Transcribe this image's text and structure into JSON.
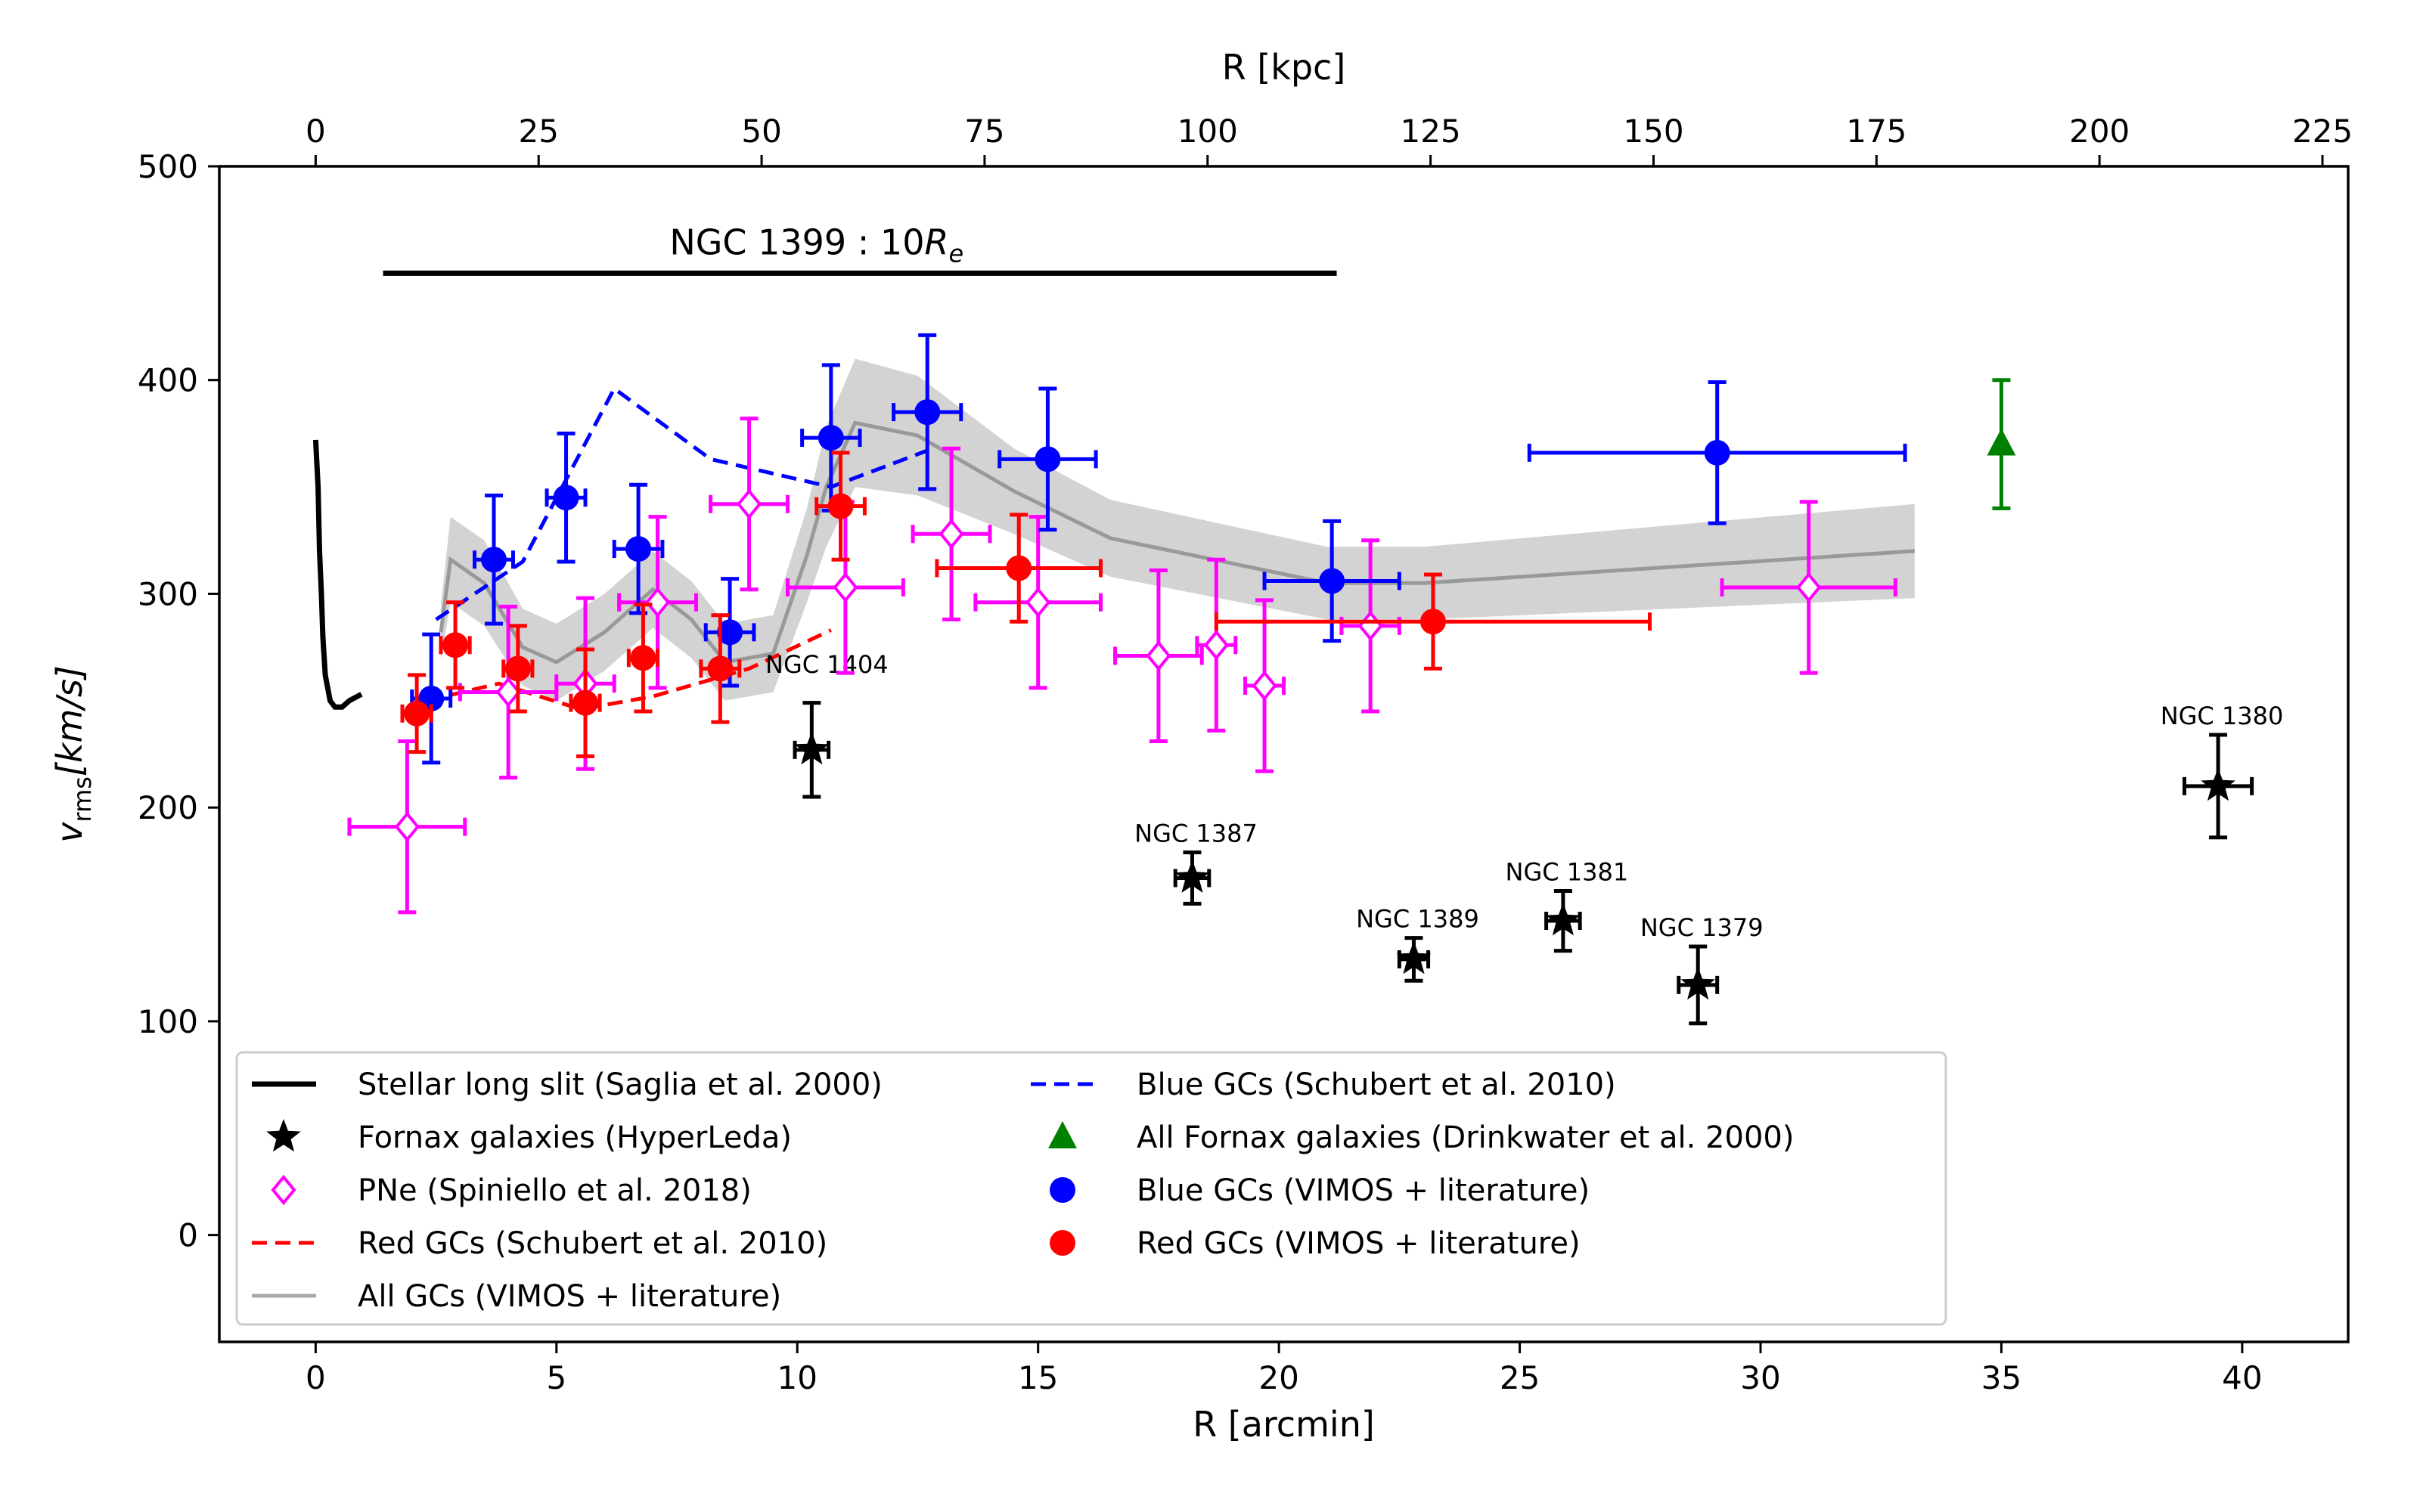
{
  "chart_data": {
    "type": "scatter",
    "xlabel": "R [arcmin]",
    "ylabel": "v_rms[km/s]",
    "top_xlabel": "R [kpc]",
    "xlim": [
      -2,
      42.2
    ],
    "ylim": [
      -50,
      500
    ],
    "top_xlim_kpc": [
      0,
      225
    ],
    "x_ticks": [
      0,
      5,
      10,
      15,
      20,
      25,
      30,
      35,
      40
    ],
    "y_ticks": [
      0,
      100,
      200,
      300,
      400,
      500
    ],
    "top_ticks": [
      0,
      25,
      50,
      75,
      100,
      125,
      150,
      175,
      200,
      225
    ],
    "annotation": {
      "text": "NGC 1399 : 10",
      "sub": "R",
      "subscript": "e",
      "x_range": [
        1.4,
        21.2
      ],
      "y": 450
    },
    "series": [
      {
        "name": "Stellar long slit (Saglia et al. 2000)",
        "kind": "line",
        "color": "#000000",
        "points": [
          [
            0.0,
            372
          ],
          [
            0.05,
            350
          ],
          [
            0.08,
            320
          ],
          [
            0.12,
            300
          ],
          [
            0.15,
            280
          ],
          [
            0.2,
            262
          ],
          [
            0.3,
            250
          ],
          [
            0.4,
            247
          ],
          [
            0.55,
            247
          ],
          [
            0.7,
            250
          ],
          [
            0.95,
            253
          ]
        ]
      },
      {
        "name": "Fornax galaxies (HyperLeda)",
        "kind": "star",
        "color": "#000000",
        "points": [
          {
            "x": 10.3,
            "y": 227,
            "xerr": 0.35,
            "yerr": 22,
            "label": "NGC 1404"
          },
          {
            "x": 18.2,
            "y": 167,
            "xerr": 0.35,
            "yerr": 12,
            "label": "NGC 1387"
          },
          {
            "x": 22.8,
            "y": 129,
            "xerr": 0.3,
            "yerr": 10,
            "label": "NGC 1389"
          },
          {
            "x": 25.9,
            "y": 147,
            "xerr": 0.35,
            "yerr": 14,
            "label": "NGC 1381"
          },
          {
            "x": 28.7,
            "y": 117,
            "xerr": 0.4,
            "yerr": 18,
            "label": "NGC 1379"
          },
          {
            "x": 39.5,
            "y": 210,
            "xerr": 0.7,
            "yerr": 24,
            "label": "NGC 1380"
          }
        ]
      },
      {
        "name": "PNe (Spiniello et al. 2018)",
        "kind": "diamond",
        "color": "#ff00ff",
        "points": [
          {
            "x": 1.9,
            "y": 191,
            "xerr": 1.2,
            "yerr": 40
          },
          {
            "x": 4.0,
            "y": 254,
            "xerr": 1.0,
            "yerr": 40
          },
          {
            "x": 5.6,
            "y": 258,
            "xerr": 0.6,
            "yerr": 40
          },
          {
            "x": 7.1,
            "y": 296,
            "xerr": 0.8,
            "yerr": 40
          },
          {
            "x": 9.0,
            "y": 342,
            "xerr": 0.8,
            "yerr": 40
          },
          {
            "x": 11.0,
            "y": 303,
            "xerr": 1.2,
            "yerr": 40
          },
          {
            "x": 13.2,
            "y": 328,
            "xerr": 0.8,
            "yerr": 40
          },
          {
            "x": 15.0,
            "y": 296,
            "xerr": 1.3,
            "yerr": 40
          },
          {
            "x": 17.5,
            "y": 271,
            "xerr": 0.9,
            "yerr": 40
          },
          {
            "x": 18.7,
            "y": 276,
            "xerr": 0.4,
            "yerr": 40
          },
          {
            "x": 19.7,
            "y": 257,
            "xerr": 0.4,
            "yerr": 40
          },
          {
            "x": 21.9,
            "y": 285,
            "xerr": 0.6,
            "yerr": 40
          },
          {
            "x": 31.0,
            "y": 303,
            "xerr": 1.8,
            "yerr": 40
          }
        ]
      },
      {
        "name": "Red GCs (Schubert et al. 2010)",
        "kind": "dashed",
        "color": "#ff0000",
        "points": [
          [
            2.3,
            250
          ],
          [
            3.8,
            258
          ],
          [
            5.5,
            246
          ],
          [
            7.0,
            252
          ],
          [
            9.0,
            265
          ],
          [
            10.7,
            283
          ]
        ]
      },
      {
        "name": "All GCs (VIMOS + literature)",
        "kind": "band",
        "color": "#999999",
        "band_color": "#d3d3d3",
        "points": [
          [
            2.6,
            282
          ],
          [
            2.8,
            316
          ],
          [
            3.5,
            305
          ],
          [
            4.3,
            275
          ],
          [
            5.0,
            268
          ],
          [
            6.0,
            282
          ],
          [
            7.0,
            302
          ],
          [
            7.8,
            288
          ],
          [
            8.5,
            268
          ],
          [
            9.5,
            272
          ],
          [
            10.2,
            318
          ],
          [
            10.6,
            350
          ],
          [
            11.2,
            380
          ],
          [
            12.5,
            374
          ],
          [
            14.5,
            348
          ],
          [
            16.5,
            326
          ],
          [
            21.0,
            305
          ],
          [
            23.0,
            305
          ],
          [
            33.2,
            320
          ]
        ],
        "band_halfwidth": [
          13,
          20,
          20,
          18,
          18,
          18,
          18,
          18,
          18,
          18,
          22,
          28,
          30,
          28,
          20,
          18,
          17,
          17,
          22
        ]
      },
      {
        "name": "Blue GCs (Schubert et al. 2010)",
        "kind": "dashed",
        "color": "#0000ff",
        "points": [
          [
            2.5,
            288
          ],
          [
            4.3,
            315
          ],
          [
            6.2,
            396
          ],
          [
            8.2,
            363
          ],
          [
            10.7,
            350
          ],
          [
            12.7,
            367
          ]
        ]
      },
      {
        "name": "All Fornax galaxies (Drinkwater et al. 2000)",
        "kind": "triangle",
        "color": "#008000",
        "points": [
          {
            "x": 35.0,
            "y": 370,
            "xerr": 0,
            "yerr": 30
          }
        ]
      },
      {
        "name": "Blue GCs (VIMOS + literature)",
        "kind": "circle",
        "color": "#0000ff",
        "points": [
          {
            "x": 2.4,
            "y": 251,
            "xerr": 0.4,
            "yerr": 30
          },
          {
            "x": 3.7,
            "y": 316,
            "xerr": 0.4,
            "yerr": 30
          },
          {
            "x": 5.2,
            "y": 345,
            "xerr": 0.4,
            "yerr": 30
          },
          {
            "x": 6.7,
            "y": 321,
            "xerr": 0.5,
            "yerr": 30
          },
          {
            "x": 8.6,
            "y": 282,
            "xerr": 0.5,
            "yerr": 25
          },
          {
            "x": 10.7,
            "y": 373,
            "xerr": 0.6,
            "yerr": 34
          },
          {
            "x": 12.7,
            "y": 385,
            "xerr": 0.7,
            "yerr": 36
          },
          {
            "x": 15.2,
            "y": 363,
            "xerr": 1.0,
            "yerr": 33
          },
          {
            "x": 21.1,
            "y": 306,
            "xerr": 1.4,
            "yerr": 28
          },
          {
            "x": 29.1,
            "y": 366,
            "xerr": 3.9,
            "yerr": 33
          }
        ]
      },
      {
        "name": "Red GCs (VIMOS + literature)",
        "kind": "circle",
        "color": "#ff0000",
        "points": [
          {
            "x": 2.1,
            "y": 244,
            "xerr": 0.3,
            "yerr": 18
          },
          {
            "x": 2.9,
            "y": 276,
            "xerr": 0.3,
            "yerr": 20
          },
          {
            "x": 4.2,
            "y": 265,
            "xerr": 0.3,
            "yerr": 20
          },
          {
            "x": 5.6,
            "y": 249,
            "xerr": 0.3,
            "yerr": 25
          },
          {
            "x": 6.8,
            "y": 270,
            "xerr": 0.3,
            "yerr": 25
          },
          {
            "x": 8.4,
            "y": 265,
            "xerr": 0.4,
            "yerr": 25
          },
          {
            "x": 10.9,
            "y": 341,
            "xerr": 0.5,
            "yerr": 25
          },
          {
            "x": 14.6,
            "y": 312,
            "xerr": 1.7,
            "yerr": 25
          },
          {
            "x": 23.2,
            "y": 287,
            "xerr": 4.5,
            "yerr": 22
          }
        ]
      }
    ],
    "legend": {
      "placement": "lower-left",
      "columns": [
        [
          "Stellar long slit (Saglia et al. 2000)",
          "Fornax galaxies (HyperLeda)",
          "PNe (Spiniello et al. 2018)",
          "Red GCs (Schubert et al. 2010)",
          "All GCs (VIMOS + literature)"
        ],
        [
          "Blue GCs (Schubert et al. 2010)",
          "All Fornax galaxies (Drinkwater et al. 2000)",
          "Blue GCs (VIMOS + literature)",
          "Red GCs (VIMOS + literature)"
        ]
      ]
    }
  }
}
